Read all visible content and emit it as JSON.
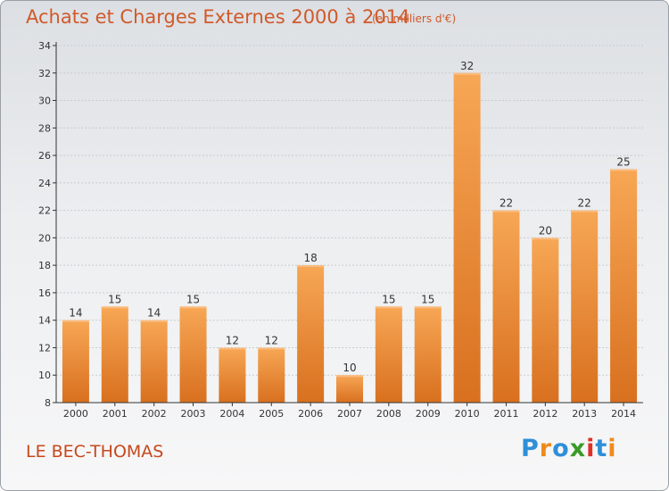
{
  "title": "Achats et Charges Externes 2000 à 2014",
  "subtitle": "(en milliers d'€)",
  "town": "LE BEC-THOMAS",
  "logo": {
    "text": "Proxiti",
    "letters": [
      {
        "char": "P",
        "color": "#2f8fd8"
      },
      {
        "char": "r",
        "color": "#f08a1c"
      },
      {
        "char": "o",
        "color": "#2f8fd8"
      },
      {
        "char": "x",
        "color": "#3a9a2a"
      },
      {
        "char": "i",
        "color": "#e0302a"
      },
      {
        "char": "t",
        "color": "#2f8fd8"
      },
      {
        "char": "i",
        "color": "#f08a1c"
      }
    ]
  },
  "colors": {
    "title": "#d05a2a",
    "bar_light": "#f7a755",
    "bar_dark": "#d8701f",
    "axis": "#333333",
    "grid": "#c9ccd0"
  },
  "chart_data": {
    "type": "bar",
    "categories": [
      "2000",
      "2001",
      "2002",
      "2003",
      "2004",
      "2005",
      "2006",
      "2007",
      "2008",
      "2009",
      "2010",
      "2011",
      "2012",
      "2013",
      "2014"
    ],
    "values": [
      14,
      15,
      14,
      15,
      12,
      12,
      18,
      10,
      15,
      15,
      32,
      22,
      20,
      22,
      25
    ],
    "ylim": [
      8,
      34
    ],
    "yticks": [
      8,
      10,
      12,
      14,
      16,
      18,
      20,
      22,
      24,
      26,
      28,
      30,
      32,
      34
    ],
    "grid": true,
    "data_labels": true
  }
}
